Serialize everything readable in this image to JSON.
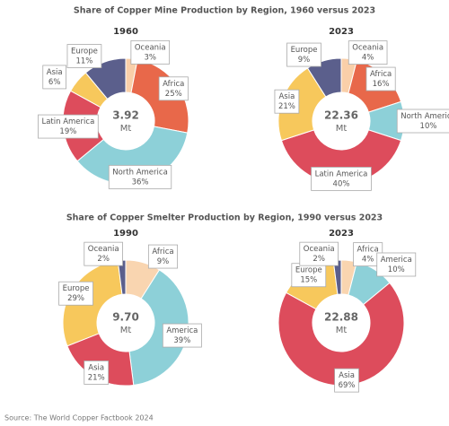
{
  "sections": [
    "Share of Copper Mine Production by Region, 1960 versus 2023",
    "Share of Copper Smelter Production by Region, 1990 versus 2023"
  ],
  "source": "Source: The World Copper Factbook 2024",
  "chart_data": [
    {
      "type": "donut",
      "title": "1960",
      "total": "3.92",
      "unit": "Mt",
      "categories": [
        "Oceania",
        "Africa",
        "North America",
        "Latin America",
        "Asia",
        "Europe"
      ],
      "values": [
        3,
        25,
        36,
        19,
        6,
        11
      ],
      "value_labels": [
        "3%",
        "25%",
        "36%",
        "19%",
        "6%",
        "11%"
      ],
      "colors": [
        "#f9cfa9",
        "#e8684a",
        "#8dd0d8",
        "#dd4c5c",
        "#f7c85c",
        "#5b5f8c"
      ]
    },
    {
      "type": "donut",
      "title": "2023",
      "total": "22.36",
      "unit": "Mt",
      "categories": [
        "Oceania",
        "Africa",
        "North America",
        "Latin America",
        "Asia",
        "Europe"
      ],
      "values": [
        4,
        16,
        10,
        40,
        21,
        9
      ],
      "value_labels": [
        "4%",
        "16%",
        "10%",
        "40%",
        "21%",
        "9%"
      ],
      "colors": [
        "#f9cfa9",
        "#e8684a",
        "#8dd0d8",
        "#dd4c5c",
        "#f7c85c",
        "#5b5f8c"
      ]
    },
    {
      "type": "donut",
      "title": "1990",
      "total": "9.70",
      "unit": "Mt",
      "categories": [
        "Africa",
        "America",
        "Asia",
        "Europe",
        "Oceania"
      ],
      "values": [
        9,
        39,
        21,
        29,
        2
      ],
      "value_labels": [
        "9%",
        "39%",
        "21%",
        "29%",
        "2%"
      ],
      "colors": [
        "#f9d5b0",
        "#8dd0d8",
        "#dd4c5c",
        "#f7c85c",
        "#5b5f8c"
      ]
    },
    {
      "type": "donut",
      "title": "2023",
      "total": "22.88",
      "unit": "Mt",
      "categories": [
        "Africa",
        "America",
        "Asia",
        "Europe",
        "Oceania"
      ],
      "values": [
        4,
        10,
        69,
        15,
        2
      ],
      "value_labels": [
        "4%",
        "10%",
        "69%",
        "15%",
        "2%"
      ],
      "colors": [
        "#f9d5b0",
        "#8dd0d8",
        "#dd4c5c",
        "#f7c85c",
        "#5b5f8c"
      ]
    }
  ]
}
